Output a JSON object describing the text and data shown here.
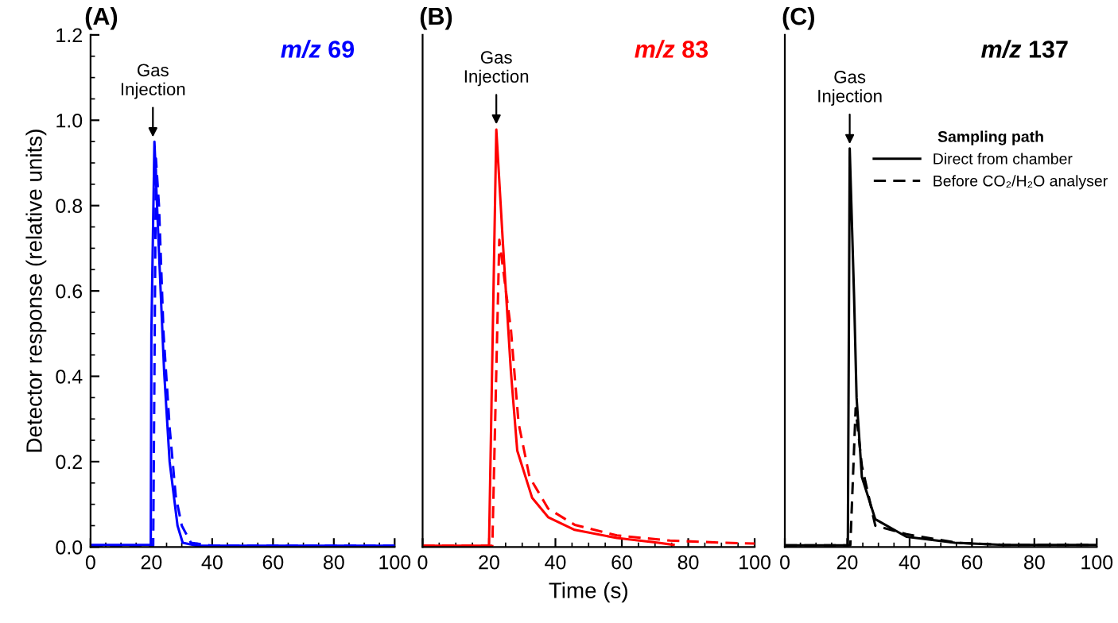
{
  "chart_data": [
    {
      "type": "line",
      "title": "(A)",
      "subtitle": "m/z 69",
      "ylabel": "Detector response (relative units)",
      "xlim": [
        0,
        100
      ],
      "ylim": [
        0,
        1.2
      ],
      "xticks": [
        0,
        20,
        40,
        60,
        80,
        100
      ],
      "yticks": [
        {
          "value": 0,
          "label": "0.0"
        },
        {
          "value": 0.2,
          "label": "0.2"
        },
        {
          "value": 0.4,
          "label": "0.4"
        },
        {
          "value": 0.6,
          "label": "0.6"
        },
        {
          "value": 0.8,
          "label": "0.8"
        },
        {
          "value": 1.0,
          "label": "1.0"
        },
        {
          "value": 1.2,
          "label": "1.2"
        }
      ],
      "grid": false,
      "legend": false,
      "annotations": [
        {
          "text": "Gas\nInjection",
          "x": 20.5,
          "y": 0.95
        }
      ],
      "series": [
        {
          "color": "#0000ff",
          "line_style": "solid",
          "x": [
            0,
            10,
            19.8,
            20,
            21,
            22.5,
            24.2,
            26,
            28.6,
            30.3,
            35,
            50,
            100
          ],
          "values": [
            0.005,
            0.005,
            0.005,
            0.5,
            0.95,
            0.69,
            0.41,
            0.2,
            0.05,
            0.01,
            0.003,
            0.003,
            0.003
          ]
        },
        {
          "color": "#0000ff",
          "line_style": "dashed",
          "x": [
            0,
            10,
            20.6,
            21.5,
            22.5,
            24,
            26,
            28,
            30,
            33,
            40,
            60,
            100
          ],
          "values": [
            0.003,
            0.003,
            0.003,
            0.91,
            0.8,
            0.5,
            0.28,
            0.12,
            0.05,
            0.01,
            0.003,
            0.003,
            0.003
          ]
        }
      ]
    },
    {
      "type": "line",
      "title": "(B)",
      "subtitle": "m/z 83",
      "xlabel": "Time (s)",
      "xlim": [
        0,
        100
      ],
      "ylim": [
        0,
        1.2
      ],
      "xticks": [
        0,
        20,
        40,
        60,
        80,
        100
      ],
      "tick_labels": "x",
      "grid": false,
      "legend": false,
      "annotations": [
        {
          "text": "Gas\nInjection",
          "x": 22.2,
          "y": 0.98
        }
      ],
      "series": [
        {
          "color": "#ff0000",
          "line_style": "solid",
          "x": [
            0,
            10,
            20,
            22.2,
            24.2,
            26.6,
            28.5,
            33,
            37.8,
            45.8,
            58.5,
            71,
            75.6
          ],
          "values": [
            0.003,
            0.003,
            0.003,
            0.978,
            0.71,
            0.41,
            0.226,
            0.115,
            0.07,
            0.04,
            0.021,
            0.01,
            0.005
          ]
        },
        {
          "color": "#ff0000",
          "line_style": "dashed",
          "x": [
            0,
            10,
            21,
            23.1,
            26.6,
            28.9,
            32.2,
            37.8,
            45.8,
            58.5,
            74.5,
            90.4,
            100
          ],
          "values": [
            0.003,
            0.003,
            0.003,
            0.72,
            0.51,
            0.29,
            0.164,
            0.09,
            0.052,
            0.027,
            0.015,
            0.01,
            0.008
          ]
        }
      ]
    },
    {
      "type": "line",
      "title": "(C)",
      "subtitle": "m/z 137",
      "xlim": [
        0,
        100
      ],
      "ylim": [
        0,
        1.2
      ],
      "xticks": [
        0,
        20,
        40,
        60,
        80,
        100
      ],
      "tick_labels": "x",
      "grid": false,
      "legend": "top right",
      "legend_title": "Sampling path",
      "annotations": [
        {
          "text": "Gas\nInjection",
          "x": 20.8,
          "y": 0.934
        }
      ],
      "series": [
        {
          "name": "Direct from chamber",
          "color": "#000000",
          "line_style": "solid",
          "x": [
            0,
            10,
            20.2,
            20.8,
            22.2,
            23,
            24.7,
            29,
            39,
            54.5,
            70,
            100
          ],
          "values": [
            0.004,
            0.004,
            0.004,
            0.934,
            0.586,
            0.35,
            0.164,
            0.065,
            0.024,
            0.01,
            0.005,
            0.005
          ]
        },
        {
          "name": "Before CO₂/H₂O analyser",
          "color": "#000000",
          "line_style": "dashed",
          "x": [
            0,
            10,
            21,
            22.7,
            24.7,
            29,
            39,
            55,
            70,
            100
          ],
          "values": [
            0.004,
            0.004,
            0.004,
            0.325,
            0.19,
            0.05,
            0.03,
            0.01,
            0.005,
            0.005
          ]
        }
      ]
    }
  ]
}
